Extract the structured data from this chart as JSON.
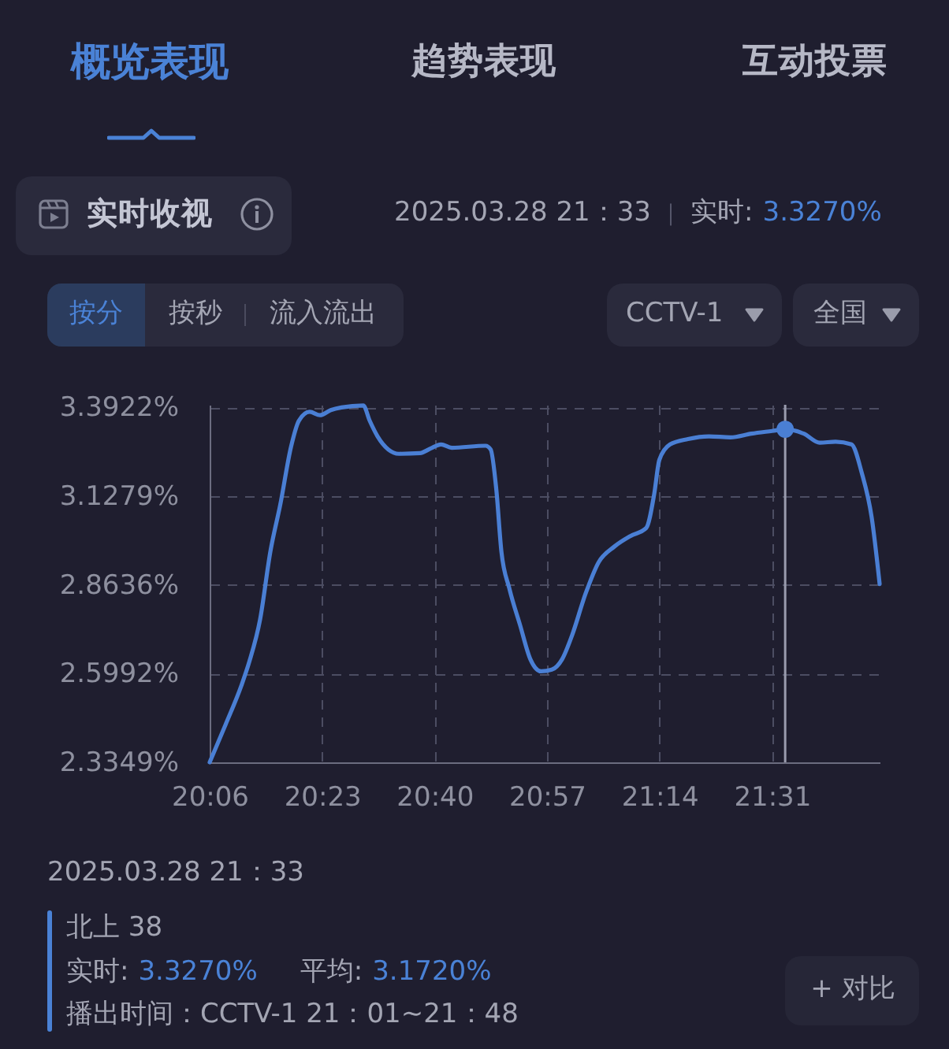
{
  "chart_data": {
    "type": "line",
    "title": "实时收视",
    "annotations": [
      "概览表现",
      "趋势表现",
      "互动投票",
      "2025.03.28 21：33",
      "实时:",
      "3.3270%",
      "按分",
      "按秒",
      "流入流出",
      "CCTV-1",
      "全国",
      "2025.03.28 21：33",
      "北上 38",
      "实时:",
      "3.3270%",
      "平均:",
      "3.1720%",
      "播出时间：CCTV-1 21：01~21：48",
      "+ 对比"
    ],
    "x": [
      20.1,
      20.14,
      20.18,
      20.2,
      20.227,
      20.253,
      20.278,
      20.305,
      20.325,
      20.352,
      20.378,
      20.405,
      20.432,
      20.487,
      20.503,
      20.523,
      20.55,
      20.577,
      20.63,
      20.657,
      20.683,
      20.71,
      20.795,
      20.808,
      20.822,
      20.835,
      20.855,
      20.882,
      20.908,
      20.935,
      20.962,
      20.988,
      21.013,
      21.047,
      21.08,
      21.12,
      21.16,
      21.2,
      21.22,
      21.233,
      21.26,
      21.305,
      21.358,
      21.412,
      21.465,
      21.517,
      21.55,
      21.597,
      21.637,
      21.677,
      21.717,
      21.743,
      21.768,
      21.788
    ],
    "series": [
      {
        "color": "#4a7fd4",
        "values": [
          2.335,
          2.447,
          2.564,
          2.635,
          2.76,
          2.963,
          3.103,
          3.275,
          3.353,
          3.379,
          3.369,
          3.384,
          3.392,
          3.398,
          3.353,
          3.306,
          3.267,
          3.254,
          3.256,
          3.27,
          3.282,
          3.272,
          3.278,
          3.267,
          3.15,
          2.963,
          2.853,
          2.744,
          2.642,
          2.606,
          2.611,
          2.642,
          2.713,
          2.837,
          2.931,
          2.978,
          3.009,
          3.033,
          3.134,
          3.236,
          3.282,
          3.298,
          3.306,
          3.303,
          3.314,
          3.322,
          3.327,
          3.314,
          3.287,
          3.29,
          3.282,
          3.197,
          3.064,
          2.866
        ]
      },
      {
        "type": "scatter",
        "color": "#4a7fd4",
        "x": [
          21.55
        ],
        "values": [
          3.327
        ]
      }
    ],
    "xlim": [
      20.1,
      21.788
    ],
    "ylim": [
      2.3349,
      3.4
    ],
    "xticks": [
      {
        "value": 20.1,
        "label": "20:06"
      },
      {
        "value": 20.3833,
        "label": "20:23"
      },
      {
        "value": 20.6667,
        "label": "20:40"
      },
      {
        "value": 20.95,
        "label": "20:57"
      },
      {
        "value": 21.2333,
        "label": "21:14"
      },
      {
        "value": 21.5167,
        "label": "21:31"
      }
    ],
    "yticks": [
      {
        "value": 2.3349,
        "label": "2.3349%"
      },
      {
        "value": 2.5992,
        "label": "2.5992%"
      },
      {
        "value": 2.8636,
        "label": "2.8636%"
      },
      {
        "value": 3.1279,
        "label": "3.1279%"
      },
      {
        "value": 3.3922,
        "label": "3.3922%"
      }
    ],
    "grid": true,
    "line_style": "solid",
    "ref_lines": [
      {
        "axis": "x",
        "value": 21.55,
        "color": "#9a9cae",
        "line_style": "solid"
      }
    ]
  }
}
